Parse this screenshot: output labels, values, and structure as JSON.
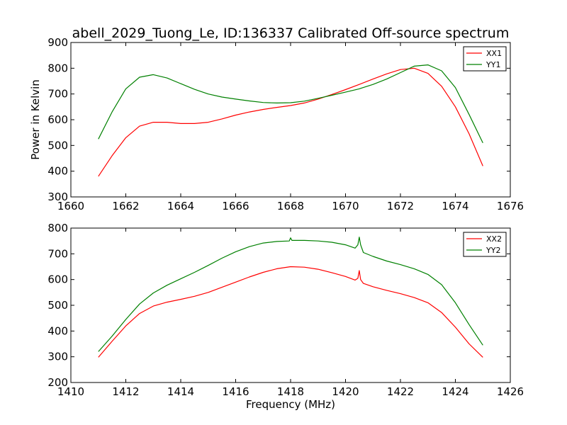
{
  "title": "abell_2029_Tuong_Le, ID:136337 Calibrated Off-source spectrum",
  "chart_data": [
    {
      "type": "line",
      "ylabel": "Power in Kelvin",
      "xlabel": "",
      "xlim": [
        1660,
        1676
      ],
      "ylim": [
        300,
        900
      ],
      "xticks": [
        "1660",
        "1662",
        "1664",
        "1666",
        "1668",
        "1670",
        "1672",
        "1674",
        "1676"
      ],
      "yticks": [
        "300",
        "400",
        "500",
        "600",
        "700",
        "800",
        "900"
      ],
      "legend_position": "top-right",
      "series": [
        {
          "name": "XX1",
          "color": "#ff0000",
          "x": [
            1661.0,
            1661.5,
            1662.0,
            1662.5,
            1663.0,
            1663.5,
            1664.0,
            1664.5,
            1665.0,
            1665.5,
            1666.0,
            1666.5,
            1667.0,
            1667.5,
            1668.0,
            1668.5,
            1669.0,
            1669.5,
            1670.0,
            1670.5,
            1671.0,
            1671.5,
            1672.0,
            1672.5,
            1673.0,
            1673.5,
            1674.0,
            1674.5,
            1675.0
          ],
          "y": [
            380,
            460,
            530,
            575,
            590,
            590,
            585,
            585,
            590,
            603,
            618,
            630,
            640,
            648,
            655,
            665,
            680,
            698,
            717,
            737,
            758,
            778,
            795,
            800,
            780,
            730,
            650,
            545,
            420
          ]
        },
        {
          "name": "YY1",
          "color": "#008000",
          "x": [
            1661.0,
            1661.5,
            1662.0,
            1662.5,
            1663.0,
            1663.5,
            1664.0,
            1664.5,
            1665.0,
            1665.5,
            1666.0,
            1666.5,
            1667.0,
            1667.5,
            1668.0,
            1668.5,
            1669.0,
            1669.5,
            1670.0,
            1670.5,
            1671.0,
            1671.5,
            1672.0,
            1672.5,
            1673.0,
            1673.5,
            1674.0,
            1674.5,
            1675.0
          ],
          "y": [
            525,
            630,
            720,
            765,
            775,
            762,
            740,
            718,
            700,
            688,
            680,
            673,
            667,
            665,
            666,
            672,
            683,
            695,
            707,
            720,
            737,
            758,
            783,
            808,
            813,
            790,
            725,
            620,
            510
          ]
        }
      ]
    },
    {
      "type": "line",
      "ylabel": "",
      "xlabel": "Frequency (MHz)",
      "xlim": [
        1410,
        1426
      ],
      "ylim": [
        200,
        800
      ],
      "xticks": [
        "1410",
        "1412",
        "1414",
        "1416",
        "1418",
        "1420",
        "1422",
        "1424",
        "1426"
      ],
      "yticks": [
        "200",
        "300",
        "400",
        "500",
        "600",
        "700",
        "800"
      ],
      "legend_position": "top-right",
      "series": [
        {
          "name": "XX2",
          "color": "#ff0000",
          "x": [
            1411.0,
            1411.5,
            1412.0,
            1412.5,
            1413.0,
            1413.5,
            1414.0,
            1414.5,
            1415.0,
            1415.5,
            1416.0,
            1416.5,
            1417.0,
            1417.5,
            1418.0,
            1418.5,
            1419.0,
            1419.5,
            1420.0,
            1420.35,
            1420.45,
            1420.5,
            1420.55,
            1420.65,
            1421.0,
            1421.5,
            1422.0,
            1422.5,
            1423.0,
            1423.5,
            1424.0,
            1424.5,
            1425.0
          ],
          "y": [
            298,
            360,
            420,
            468,
            497,
            512,
            523,
            535,
            550,
            570,
            590,
            610,
            628,
            642,
            650,
            648,
            640,
            627,
            612,
            598,
            605,
            635,
            600,
            585,
            572,
            558,
            545,
            530,
            510,
            472,
            415,
            350,
            298
          ]
        },
        {
          "name": "YY2",
          "color": "#008000",
          "x": [
            1411.0,
            1411.5,
            1412.0,
            1412.5,
            1413.0,
            1413.5,
            1414.0,
            1414.5,
            1415.0,
            1415.5,
            1416.0,
            1416.5,
            1417.0,
            1417.5,
            1417.95,
            1418.0,
            1418.05,
            1418.5,
            1419.0,
            1419.5,
            1420.0,
            1420.35,
            1420.45,
            1420.5,
            1420.55,
            1420.65,
            1421.0,
            1421.5,
            1422.0,
            1422.5,
            1423.0,
            1423.5,
            1424.0,
            1424.5,
            1425.0
          ],
          "y": [
            320,
            380,
            445,
            505,
            548,
            578,
            603,
            628,
            655,
            683,
            708,
            728,
            742,
            748,
            750,
            762,
            752,
            752,
            750,
            745,
            735,
            722,
            735,
            765,
            735,
            705,
            690,
            672,
            658,
            642,
            620,
            580,
            510,
            425,
            345
          ]
        }
      ]
    }
  ]
}
